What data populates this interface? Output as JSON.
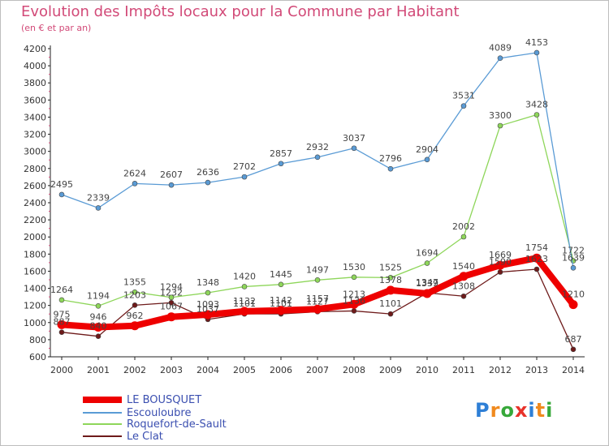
{
  "title": "Evolution des Impôts locaux pour la Commune par Habitant",
  "subtitle": "(en € et par an)",
  "logo": {
    "text": "Proxiti",
    "letters": [
      "P",
      "r",
      "o",
      "x",
      "i",
      "t",
      "i"
    ],
    "colors": [
      "#2e7fd6",
      "#f08a1e",
      "#37a83a",
      "#e8322a",
      "#2e7fd6",
      "#f08a1e",
      "#37a83a"
    ]
  },
  "chart_data": {
    "type": "line",
    "title": "Evolution des Impôts locaux pour la Commune par Habitant",
    "subtitle": "(en € et par an)",
    "x": [
      "2000",
      "2001",
      "2002",
      "2003",
      "2004",
      "2005",
      "2006",
      "2007",
      "2008",
      "2009",
      "2010",
      "2011",
      "2012",
      "2013",
      "2014"
    ],
    "ylim": [
      600,
      4200
    ],
    "yticks": [
      "600",
      "800",
      "1000",
      "1200",
      "1400",
      "1600",
      "1800",
      "2000",
      "2200",
      "2400",
      "2600",
      "2800",
      "3000",
      "3200",
      "3400",
      "3600",
      "3800",
      "4000",
      "4200"
    ],
    "grid": false,
    "legend_position": "bottom-left",
    "series": [
      {
        "name": "Le Clat",
        "color": "#6e1a1a",
        "values": [
          887,
          840,
          1203,
          1232,
          1037,
          1101,
          1101,
          1127,
          1136,
          1101,
          1347,
          1308,
          1590,
          1623,
          687
        ],
        "labels": [
          "887",
          "840",
          "1203",
          "1232",
          "1037",
          "1101",
          "1101",
          "1127",
          "1136",
          "1101",
          "1347",
          "1308",
          "1590",
          "1623",
          "687"
        ]
      },
      {
        "name": "Roquefort-de-Sault",
        "color": "#8ed65a",
        "values": [
          1264,
          1194,
          1355,
          1294,
          1348,
          1420,
          1445,
          1497,
          1530,
          1525,
          1694,
          2002,
          3300,
          3428,
          1722
        ],
        "labels": [
          "1264",
          "1194",
          "1355",
          "1294",
          "1348",
          "1420",
          "1445",
          "1497",
          "1530",
          "1525",
          "1694",
          "2002",
          "3300",
          "3428",
          "1722"
        ]
      },
      {
        "name": "Escouloubre",
        "color": "#5a9bd5",
        "values": [
          2495,
          2339,
          2624,
          2607,
          2636,
          2702,
          2857,
          2932,
          3037,
          2796,
          2904,
          3531,
          4089,
          4153,
          1639
        ],
        "labels": [
          "2495",
          "2339",
          "2624",
          "2607",
          "2636",
          "2702",
          "2857",
          "2932",
          "3037",
          "2796",
          "2904",
          "3531",
          "4089",
          "4153",
          "1639"
        ]
      },
      {
        "name": "LE BOUSQUET",
        "color": "#ee0000",
        "values": [
          975,
          946,
          962,
          1067,
          1093,
          1132,
          1142,
          1157,
          1213,
          1378,
          1339,
          1540,
          1669,
          1754,
          1210
        ],
        "labels": [
          "975",
          "946",
          "962",
          "1067",
          "1093",
          "1132",
          "1142",
          "1157",
          "1213",
          "1378",
          "1339",
          "1540",
          "1669",
          "1754",
          "1210"
        ]
      }
    ],
    "legend": [
      "LE BOUSQUET",
      "Escouloubre",
      "Roquefort-de-Sault",
      "Le Clat"
    ]
  }
}
